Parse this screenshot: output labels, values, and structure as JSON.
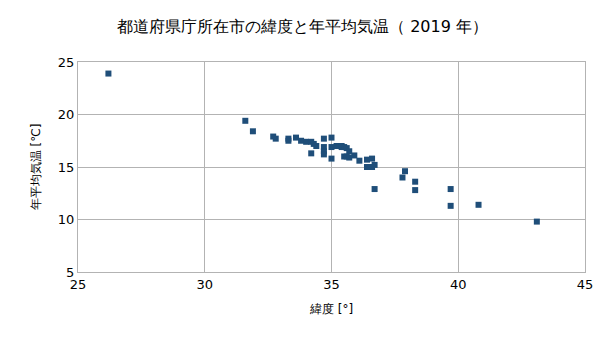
{
  "chart_data": {
    "type": "scatter",
    "title": "都道府県庁所在市の緯度と年平均気温（ 2019 年）",
    "x_label": "緯度 [°]",
    "y_label": "年平均気温 [℃]",
    "x": [
      26.2,
      31.6,
      31.9,
      32.7,
      32.8,
      33.3,
      33.3,
      33.6,
      33.8,
      34.0,
      34.2,
      34.3,
      34.4,
      34.2,
      34.7,
      34.7,
      34.7,
      34.7,
      35.0,
      35.0,
      35.0,
      35.2,
      35.3,
      35.4,
      35.4,
      35.5,
      35.6,
      35.7,
      35.5,
      35.6,
      35.7,
      35.9,
      36.1,
      36.4,
      36.6,
      36.4,
      36.6,
      36.7,
      36.7,
      37.8,
      37.9,
      38.3,
      38.3,
      39.7,
      39.7,
      40.8,
      43.1
    ],
    "values": [
      23.9,
      19.4,
      18.4,
      17.9,
      17.7,
      17.7,
      17.5,
      17.8,
      17.5,
      17.4,
      17.4,
      17.2,
      17.0,
      16.3,
      17.7,
      16.9,
      16.5,
      16.2,
      17.8,
      16.9,
      15.8,
      17.0,
      17.0,
      16.9,
      17.0,
      16.9,
      16.8,
      16.5,
      16.0,
      16.0,
      15.9,
      16.1,
      15.6,
      15.7,
      15.8,
      15.0,
      15.0,
      15.2,
      12.9,
      14.0,
      14.6,
      13.6,
      12.8,
      12.9,
      11.3,
      11.4,
      9.8
    ],
    "color": "#1f4e79",
    "marker": "square",
    "xlim": [
      25,
      45
    ],
    "xticks": [
      25,
      30,
      35,
      40,
      45
    ],
    "ylim": [
      5,
      25
    ],
    "yticks": [
      5,
      10,
      15,
      20,
      25
    ],
    "grid": true
  }
}
